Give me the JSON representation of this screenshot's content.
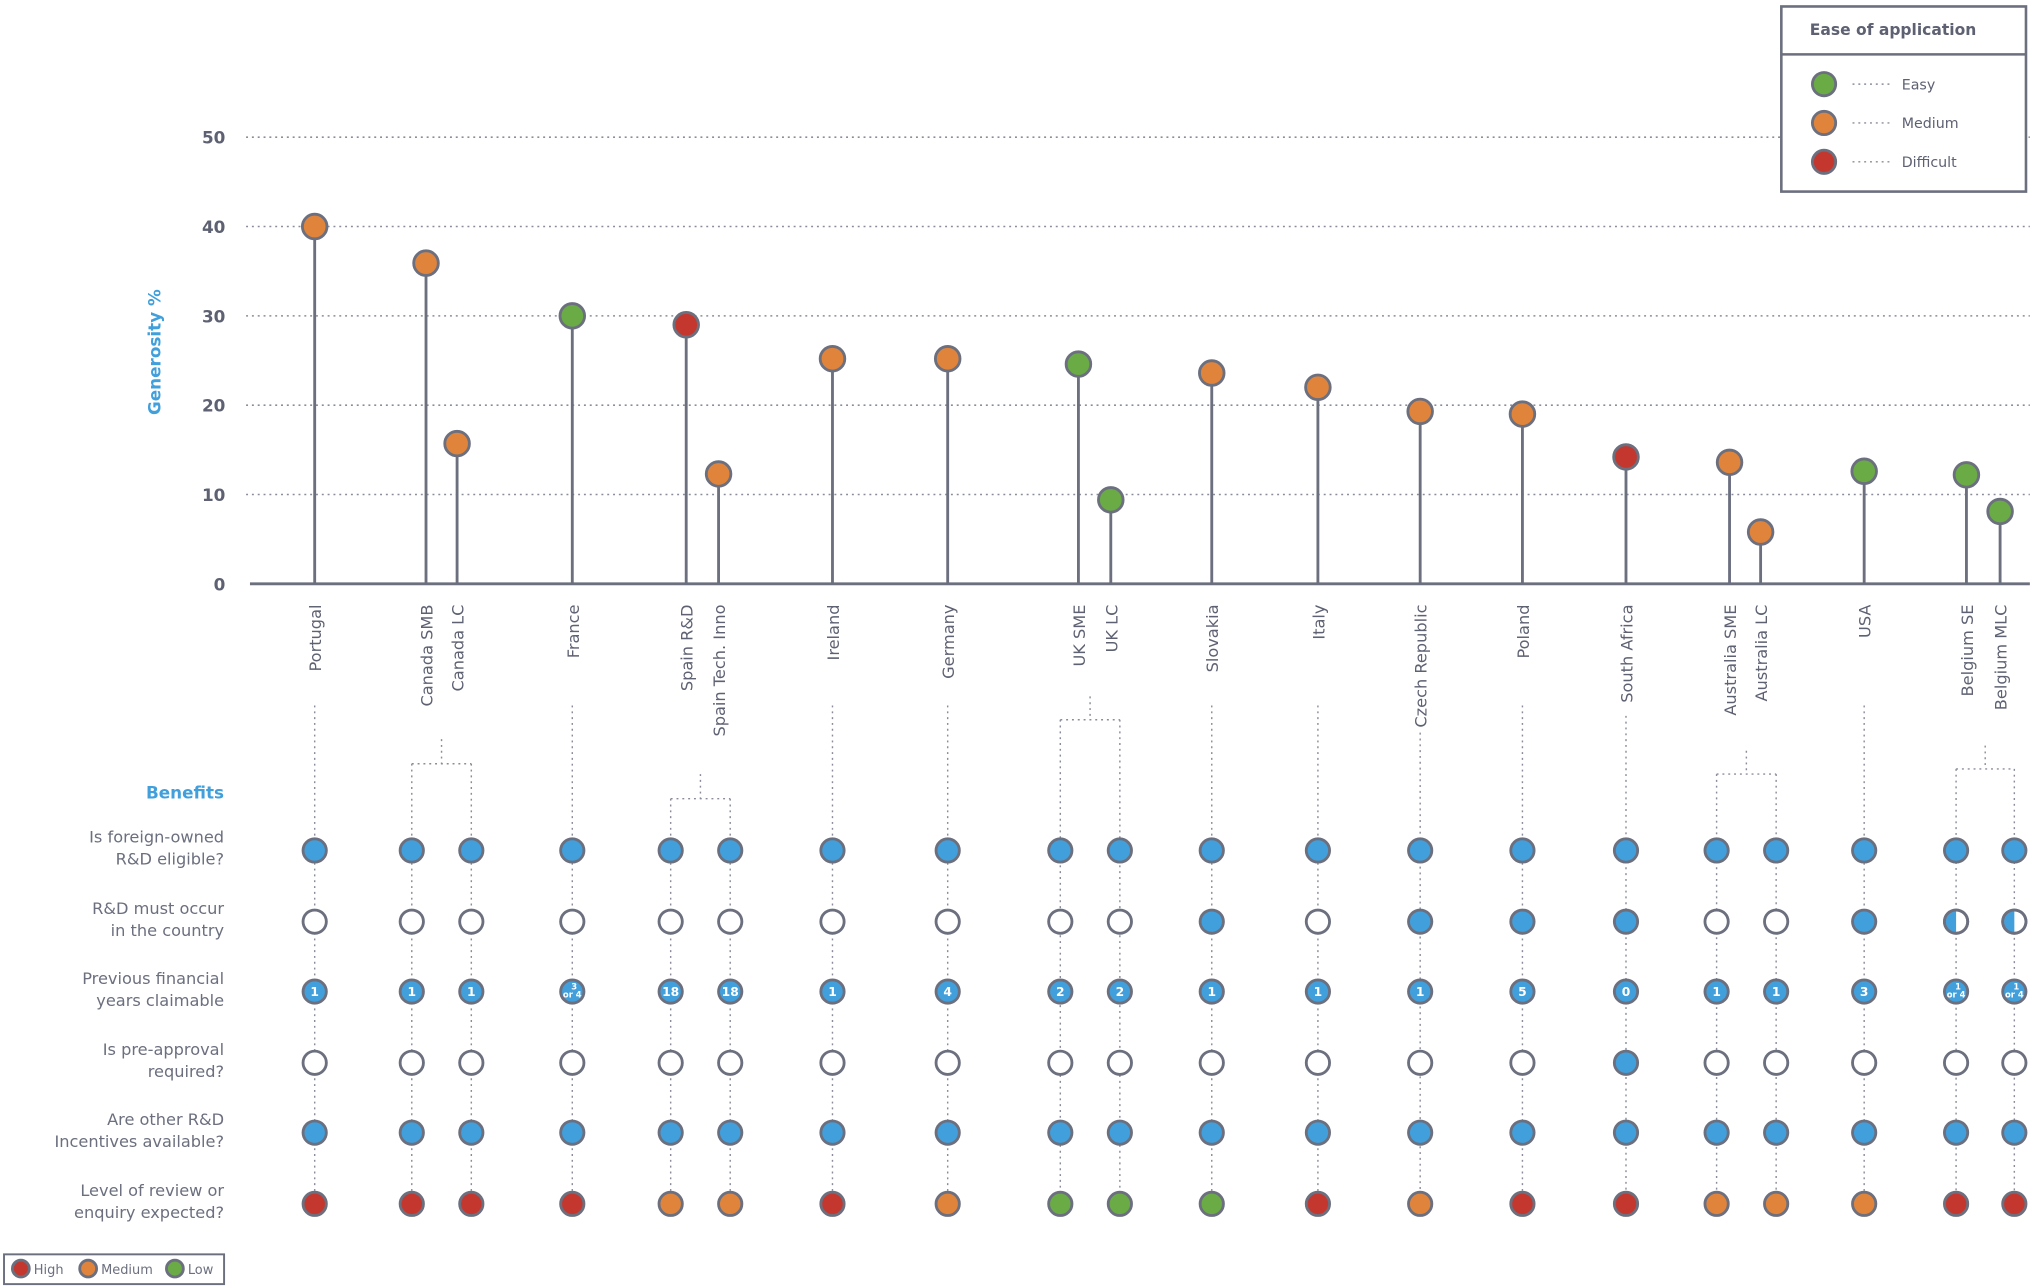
{
  "colors": {
    "blue": "#419fdb",
    "orange": "#e0843c",
    "green": "#6aab46",
    "red": "#c4372f",
    "stroke": "#6b6f7e"
  },
  "chart_data": {
    "type": "lollipop",
    "ylabel": "Generosity %",
    "ylim": [
      0,
      50
    ],
    "yticks": [
      0,
      10,
      20,
      30,
      40,
      50
    ],
    "grid": true,
    "categories": [
      "Portugal",
      "Canada SMB",
      "Canada LC",
      "France",
      "Spain R&D",
      "Spain Tech. Inno",
      "Ireland",
      "Germany",
      "UK SME",
      "UK LC",
      "Slovakia",
      "Italy",
      "Czech Republic",
      "Poland",
      "South Africa",
      "Australia SME",
      "Australia LC",
      "USA",
      "Belgium SE",
      "Belgium MLC"
    ],
    "values": [
      40,
      35.9,
      15.7,
      30,
      29,
      12.3,
      25.2,
      25.2,
      24.6,
      9.4,
      23.6,
      22,
      19.3,
      19,
      14.2,
      13.6,
      5.8,
      12.6,
      12.2,
      8.1
    ],
    "ease": [
      "Medium",
      "Medium",
      "Medium",
      "Easy",
      "Difficult",
      "Medium",
      "Medium",
      "Medium",
      "Easy",
      "Easy",
      "Medium",
      "Medium",
      "Medium",
      "Medium",
      "Difficult",
      "Medium",
      "Medium",
      "Easy",
      "Easy",
      "Easy"
    ],
    "legend": {
      "title": "Ease of application",
      "placement": "top-right",
      "items": [
        {
          "label": "Easy",
          "color": "#6aab46"
        },
        {
          "label": "Medium",
          "color": "#e0843c"
        },
        {
          "label": "Difficult",
          "color": "#c4372f"
        }
      ]
    }
  },
  "benefits": {
    "title": "Benefits",
    "rows": [
      {
        "label": [
          "Is foreign-owned",
          "R&D eligible?"
        ],
        "type": "bool",
        "values": [
          "yes",
          "yes",
          "yes",
          "yes",
          "yes",
          "yes",
          "yes",
          "yes",
          "yes",
          "yes",
          "yes",
          "yes",
          "yes",
          "yes",
          "yes",
          "yes",
          "yes",
          "yes",
          "yes",
          "yes"
        ]
      },
      {
        "label": [
          "R&D must occur",
          "in the country"
        ],
        "type": "bool",
        "values": [
          "no",
          "no",
          "no",
          "no",
          "no",
          "no",
          "no",
          "no",
          "no",
          "no",
          "yes",
          "no",
          "yes",
          "yes",
          "yes",
          "no",
          "no",
          "yes",
          "partial",
          "partial"
        ]
      },
      {
        "label": [
          "Previous financial",
          "years claimable"
        ],
        "type": "number",
        "values": [
          "1",
          "1",
          "1",
          "3 or 4",
          "18",
          "18",
          "1",
          "4",
          "2",
          "2",
          "1",
          "1",
          "1",
          "5",
          "0",
          "1",
          "1",
          "3",
          "1 or 4",
          "1 or 4"
        ]
      },
      {
        "label": [
          "Is pre-approval",
          "required?"
        ],
        "type": "bool",
        "values": [
          "no",
          "no",
          "no",
          "no",
          "no",
          "no",
          "no",
          "no",
          "no",
          "no",
          "no",
          "no",
          "no",
          "no",
          "yes",
          "no",
          "no",
          "no",
          "no",
          "no"
        ]
      },
      {
        "label": [
          "Are other R&D",
          "Incentives available?"
        ],
        "type": "bool",
        "values": [
          "yes",
          "yes",
          "yes",
          "yes",
          "yes",
          "yes",
          "yes",
          "yes",
          "yes",
          "yes",
          "yes",
          "yes",
          "yes",
          "yes",
          "yes",
          "yes",
          "yes",
          "yes",
          "yes",
          "yes"
        ]
      },
      {
        "label": [
          "Level of review or",
          "enquiry expected?"
        ],
        "type": "level",
        "values": [
          "High",
          "High",
          "High",
          "High",
          "Medium",
          "Medium",
          "High",
          "Medium",
          "Low",
          "Low",
          "Low",
          "High",
          "Medium",
          "High",
          "High",
          "Medium",
          "Medium",
          "Medium",
          "High",
          "High"
        ]
      }
    ],
    "legend": [
      {
        "label": "High",
        "color": "#c4372f"
      },
      {
        "label": "Medium",
        "color": "#e0843c"
      },
      {
        "label": "Low",
        "color": "#6aab46"
      }
    ]
  }
}
